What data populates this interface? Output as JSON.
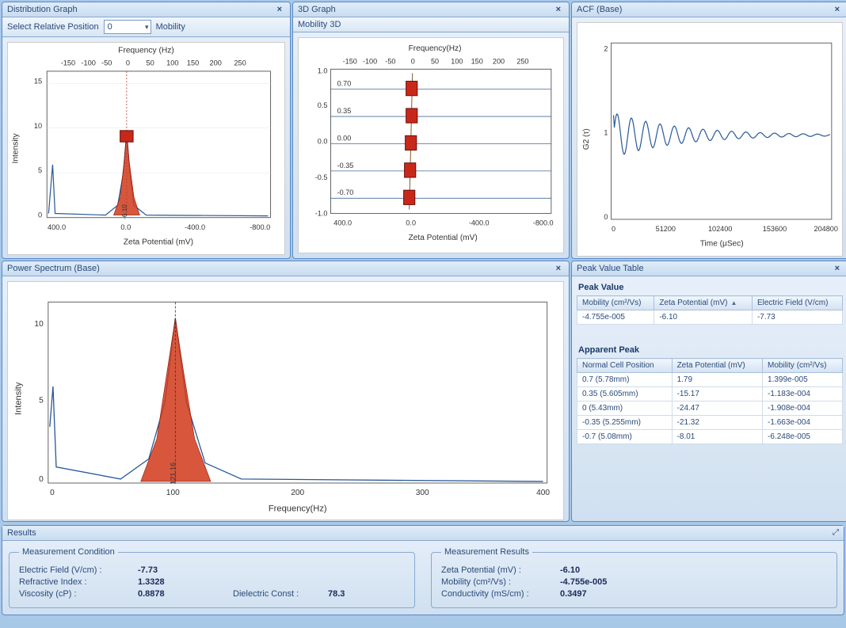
{
  "panels": {
    "dist": {
      "title": "Distribution Graph",
      "select_label": "Select Relative Position",
      "select_value": "0",
      "mode_label": "Mobility",
      "top_axis_label": "Frequency (Hz)",
      "top_ticks": [
        "-150",
        "-100",
        "-50",
        "0",
        "50",
        "100",
        "150",
        "200",
        "250"
      ],
      "x_label": "Zeta Potential (mV)",
      "x_ticks": [
        "400.0",
        "0.0",
        "-400.0",
        "-800.0"
      ],
      "y_label": "Intensity",
      "y_ticks": [
        "0",
        "5",
        "10",
        "15"
      ],
      "peak_label": "-6.10",
      "peak_fill": "#d13a1a",
      "line_color": "#2a5a9a"
    },
    "threeD": {
      "title": "3D Graph",
      "mode_labels": "Mobility   3D",
      "top_axis_label": "Frequency(Hz)",
      "top_ticks": [
        "-150",
        "-100",
        "-50",
        "0",
        "50",
        "100",
        "150",
        "200",
        "250"
      ],
      "x_label": "Zeta Potential (mV)",
      "x_ticks": [
        "400.0",
        "0.0",
        "-400.0",
        "-800.0"
      ],
      "y_ticks": [
        "-1.0",
        "-0.5",
        "0.0",
        "0.5",
        "1.0"
      ],
      "row_labels": [
        "0.70",
        "0.35",
        "0.00",
        "-0.35",
        "-0.70"
      ],
      "marker_color": "#c8281a",
      "grid_color": "#c0d0e0"
    },
    "acf": {
      "title": "ACF (Base)",
      "y_label": "G2 (τ)",
      "y_ticks": [
        "0",
        "1",
        "2"
      ],
      "x_label": "Time (μSec)",
      "x_ticks": [
        "0",
        "51200",
        "102400",
        "153600",
        "204800"
      ],
      "line_color": "#2a5a9a"
    },
    "ps": {
      "title": "Power Spectrum (Base)",
      "y_label": "Intensity",
      "y_ticks": [
        "0",
        "5",
        "10"
      ],
      "x_label": "Frequency(Hz)",
      "x_ticks": [
        "0",
        "100",
        "200",
        "300",
        "400"
      ],
      "peak_label": "121.16",
      "peak_fill": "#d13a1a",
      "line_color": "#2a5a9a"
    },
    "peak": {
      "title": "Peak Value Table",
      "section1": "Peak  Value",
      "t1_cols": [
        "Mobility (cm²/Vs)",
        "Zeta Potential (mV)",
        "Electric Field (V/cm)"
      ],
      "t1_row": [
        "-4.755e-005",
        "-6.10",
        "-7.73"
      ],
      "section2": "Apparent Peak",
      "t2_cols": [
        "Normal Cell Position",
        "Zeta Potential (mV)",
        "Mobility (cm²/Vs)"
      ],
      "t2_rows": [
        [
          "0.7 (5.78mm)",
          "1.79",
          "1.399e-005"
        ],
        [
          "0.35 (5.605mm)",
          "-15.17",
          "-1.183e-004"
        ],
        [
          "0 (5.43mm)",
          "-24.47",
          "-1.908e-004"
        ],
        [
          "-0.35 (5.255mm)",
          "-21.32",
          "-1.663e-004"
        ],
        [
          "-0.7 (5.08mm)",
          "-8.01",
          "-6.248e-005"
        ]
      ]
    }
  },
  "results": {
    "title": "Results",
    "cond_title": "Measurement Condition",
    "res_title": "Measurement Results",
    "cond": [
      {
        "k": "Electric Field (V/cm) :",
        "v": "-7.73"
      },
      {
        "k": "Refractive Index :",
        "v": "1.3328"
      },
      {
        "k": "Viscosity (cP) :",
        "v": "0.8878",
        "k2": "Dielectric Const :",
        "v2": "78.3"
      }
    ],
    "res": [
      {
        "k": "Zeta Potential (mV)   :",
        "v": "-6.10"
      },
      {
        "k": "Mobility (cm²/Vs) :",
        "v": "-4.755e-005"
      },
      {
        "k": "Conductivity (mS/cm) :",
        "v": "0.3497"
      }
    ]
  },
  "colors": {
    "axis": "#666",
    "grid": "#d8e0e8",
    "text": "#333"
  }
}
